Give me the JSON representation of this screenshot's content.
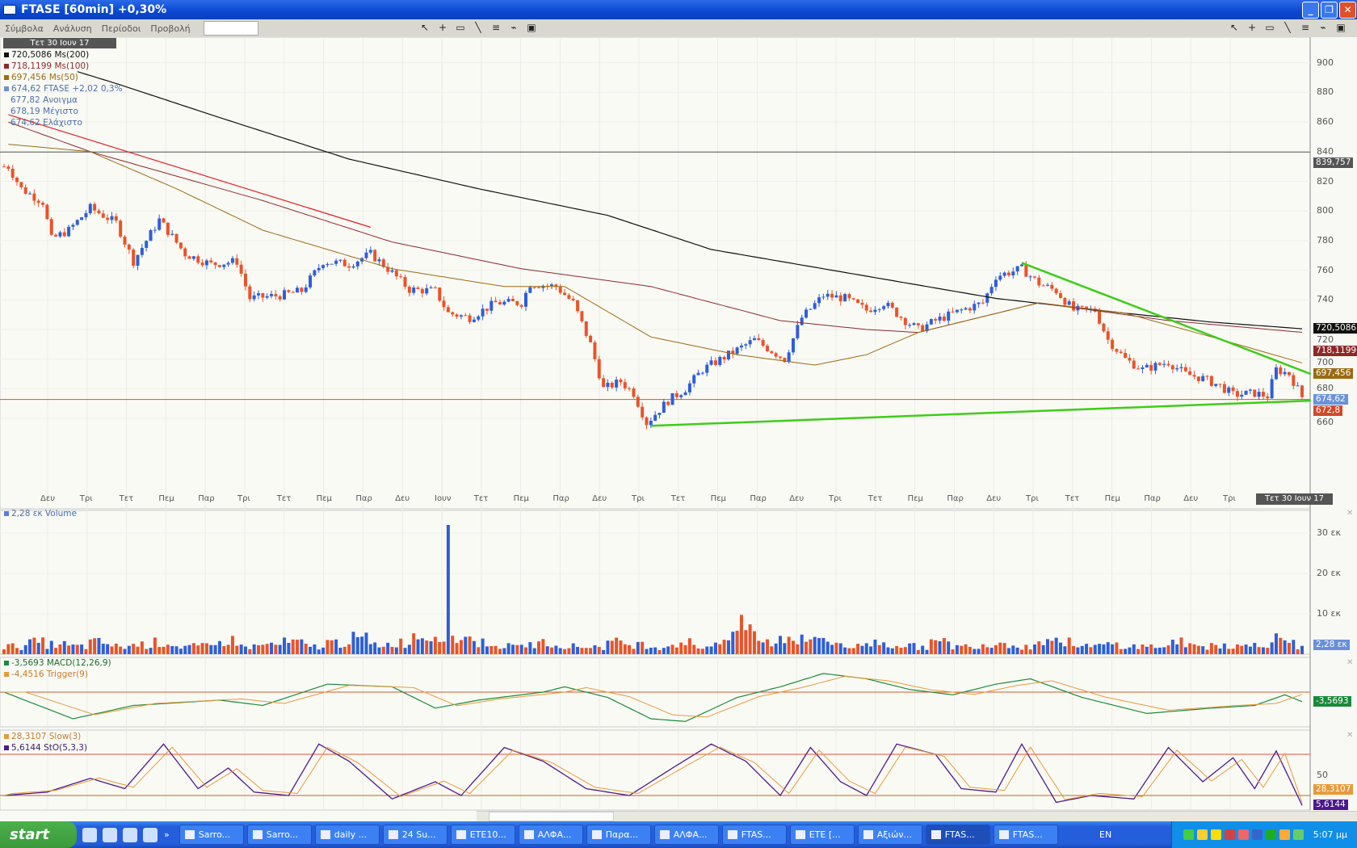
{
  "window": {
    "title": "FTASE [60min] +0,30%"
  },
  "menu": [
    "Σύμβολα",
    "Ανάλυση",
    "Περίοδοι",
    "Προβολή"
  ],
  "symbol_input": {
    "value": ""
  },
  "toolbar_icons": [
    "pointer-icon",
    "crosshair-icon",
    "rectangle-icon",
    "line-icon",
    "horizontal-lines-icon",
    "chart-icon",
    "save-icon"
  ],
  "cursor_date": "Τετ 30 Ιουν 17",
  "legend": {
    "ma200": "720,5086 Ms(200)",
    "ma100": "718,1199 Ms(100)",
    "ma50": "697,456 Ms(50)",
    "price": "674,62 FTASE +2,02 0,3%",
    "open": "677,82 Ανοιγμα",
    "high": "678,19 Μέγιστο",
    "low": "674,62 Ελάχιστο",
    "volume": "2,28 εκ Volume",
    "macd": "-3,5693 MACD(12,26,9)",
    "trigger": "-4,4516 Trigger(9)",
    "slow": "28,3107 Slow(3)",
    "sto": "5,6144 StO(5,3,3)"
  },
  "tags": {
    "hline": "839,757",
    "ma200": "720,5086",
    "ma100": "718,1199",
    "ma50": "697,456",
    "price": "674,62",
    "support": "672,8",
    "volume": "2,28 εκ",
    "macd": "-3,5693",
    "slow": "28,3107",
    "sto": "5,6144"
  },
  "colors": {
    "up": "#2f5fd6",
    "down": "#e8542a",
    "ma200": "#111111",
    "ma100": "#8b2a2a",
    "ma50": "#9a6b12",
    "trend": "#3fcc1a",
    "resist": "#dd2222",
    "macd": "#1a8a3a",
    "trigger": "#e89a3a",
    "sto": "#4b1a8a",
    "slow": "#e89a3a",
    "level": "#d05a2a"
  },
  "chart_data": {
    "type": "candlestick",
    "price_axis": {
      "ticks": [
        660,
        680,
        700,
        720,
        740,
        760,
        780,
        800,
        820,
        840,
        860,
        880,
        900
      ],
      "range": [
        650,
        910
      ]
    },
    "x_tick_labels": [
      "Δευ",
      "Τρι",
      "Τετ",
      "Πεμ",
      "Παρ",
      "Τρι",
      "Τετ",
      "Πεμ",
      "Παρ",
      "Δευ",
      "Ιουν",
      "Τετ",
      "Πεμ",
      "Παρ",
      "Δευ",
      "Τρι",
      "Τετ",
      "Πεμ",
      "Παρ",
      "Δευ",
      "Τρι",
      "Τετ",
      "Πεμ",
      "Παρ",
      "Δευ",
      "Τρι",
      "Τετ",
      "Πεμ",
      "Παρ",
      "Δευ",
      "Τρι"
    ],
    "bars": 301,
    "close_path": [
      [
        1,
        830
      ],
      [
        4,
        815
      ],
      [
        9,
        806
      ],
      [
        11,
        781
      ],
      [
        15,
        787
      ],
      [
        20,
        802
      ],
      [
        26,
        792
      ],
      [
        30,
        766
      ],
      [
        36,
        794
      ],
      [
        42,
        771
      ],
      [
        48,
        764
      ],
      [
        54,
        766
      ],
      [
        57,
        741
      ],
      [
        64,
        743
      ],
      [
        69,
        746
      ],
      [
        74,
        766
      ],
      [
        80,
        764
      ],
      [
        85,
        771
      ],
      [
        89,
        761
      ],
      [
        94,
        747
      ],
      [
        100,
        746
      ],
      [
        103,
        731
      ],
      [
        108,
        728
      ],
      [
        114,
        738
      ],
      [
        120,
        738
      ],
      [
        122,
        751
      ],
      [
        128,
        749
      ],
      [
        132,
        738
      ],
      [
        136,
        710
      ],
      [
        139,
        680
      ],
      [
        143,
        685
      ],
      [
        146,
        677
      ],
      [
        149,
        657
      ],
      [
        154,
        672
      ],
      [
        158,
        680
      ],
      [
        162,
        693
      ],
      [
        168,
        703
      ],
      [
        174,
        713
      ],
      [
        181,
        700
      ],
      [
        185,
        728
      ],
      [
        190,
        743
      ],
      [
        195,
        741
      ],
      [
        200,
        733
      ],
      [
        204,
        738
      ],
      [
        209,
        726
      ],
      [
        212,
        720
      ],
      [
        216,
        726
      ],
      [
        222,
        733
      ],
      [
        227,
        738
      ],
      [
        230,
        756
      ],
      [
        236,
        761
      ],
      [
        240,
        751
      ],
      [
        244,
        746
      ],
      [
        248,
        733
      ],
      [
        253,
        733
      ],
      [
        256,
        713
      ],
      [
        260,
        700
      ],
      [
        264,
        693
      ],
      [
        270,
        698
      ],
      [
        274,
        690
      ],
      [
        278,
        687
      ],
      [
        282,
        682
      ],
      [
        285,
        676
      ],
      [
        290,
        677
      ],
      [
        293,
        675
      ],
      [
        295,
        693
      ],
      [
        298,
        690
      ],
      [
        301,
        674.62
      ]
    ],
    "ma200": [
      [
        17,
        894
      ],
      [
        26,
        886
      ],
      [
        50,
        863
      ],
      [
        80,
        835
      ],
      [
        110,
        815
      ],
      [
        140,
        797
      ],
      [
        164,
        774
      ],
      [
        190,
        761
      ],
      [
        210,
        751
      ],
      [
        230,
        741
      ],
      [
        260,
        731
      ],
      [
        280,
        725
      ],
      [
        301,
        720.5
      ]
    ],
    "ma100": [
      [
        1,
        860
      ],
      [
        20,
        840
      ],
      [
        60,
        807
      ],
      [
        90,
        779
      ],
      [
        120,
        761
      ],
      [
        150,
        749
      ],
      [
        180,
        726
      ],
      [
        200,
        720
      ],
      [
        212,
        718
      ],
      [
        240,
        738
      ],
      [
        270,
        726
      ],
      [
        301,
        718.1
      ]
    ],
    "ma50": [
      [
        1,
        845
      ],
      [
        20,
        840
      ],
      [
        40,
        815
      ],
      [
        60,
        787
      ],
      [
        90,
        761
      ],
      [
        116,
        749
      ],
      [
        130,
        749
      ],
      [
        150,
        715
      ],
      [
        170,
        703
      ],
      [
        188,
        696
      ],
      [
        200,
        703
      ],
      [
        212,
        718
      ],
      [
        226,
        728
      ],
      [
        240,
        738
      ],
      [
        260,
        731
      ],
      [
        280,
        715
      ],
      [
        301,
        697.5
      ]
    ],
    "trendlines": [
      {
        "from": [
          1,
          865
        ],
        "to": [
          85,
          789
        ],
        "color": "resist"
      },
      {
        "from": [
          236,
          765
        ],
        "to": [
          303,
          690
        ],
        "color": "trend"
      },
      {
        "from": [
          150,
          655
        ],
        "to": [
          303,
          672
        ],
        "color": "trend"
      }
    ],
    "hlines": [
      839.757,
      672.8
    ],
    "volume": {
      "unit": "εκ",
      "ticks": [
        10,
        20,
        30
      ],
      "values": [
        2,
        3,
        2.5,
        2,
        3,
        2,
        2.5,
        3,
        2,
        2,
        3.5,
        2,
        2.5,
        3,
        2,
        3,
        4,
        2.5,
        3,
        5,
        32,
        4,
        3,
        2,
        2.5,
        3,
        2,
        2,
        3,
        2.5,
        2,
        3,
        2,
        4,
        7,
        3,
        4,
        5,
        3,
        2,
        3,
        2.5,
        2,
        3,
        2,
        2.5,
        3,
        2,
        4,
        3,
        2,
        2.5,
        2,
        2,
        3,
        2,
        2.5,
        2,
        3,
        4,
        2.28
      ]
    },
    "macd": {
      "zero": 0,
      "values": [
        [
          0,
          0
        ],
        [
          16,
          -10
        ],
        [
          30,
          -5
        ],
        [
          50,
          -3
        ],
        [
          60,
          -5
        ],
        [
          75,
          3
        ],
        [
          90,
          2
        ],
        [
          100,
          -6
        ],
        [
          110,
          -3
        ],
        [
          125,
          0
        ],
        [
          130,
          2
        ],
        [
          140,
          -2
        ],
        [
          150,
          -10
        ],
        [
          158,
          -11
        ],
        [
          170,
          -2
        ],
        [
          180,
          2
        ],
        [
          190,
          7
        ],
        [
          200,
          5
        ],
        [
          210,
          1
        ],
        [
          220,
          -1
        ],
        [
          230,
          3
        ],
        [
          238,
          5
        ],
        [
          250,
          -2
        ],
        [
          265,
          -8
        ],
        [
          280,
          -6
        ],
        [
          290,
          -5
        ],
        [
          297,
          -1
        ],
        [
          301,
          -3.57
        ]
      ]
    },
    "stochastic": {
      "levels": [
        20,
        80
      ],
      "ticks": [
        50
      ],
      "values": [
        [
          0,
          20
        ],
        [
          10,
          25
        ],
        [
          20,
          45
        ],
        [
          28,
          30
        ],
        [
          37,
          95
        ],
        [
          45,
          30
        ],
        [
          52,
          60
        ],
        [
          58,
          25
        ],
        [
          66,
          20
        ],
        [
          73,
          95
        ],
        [
          80,
          70
        ],
        [
          90,
          15
        ],
        [
          100,
          40
        ],
        [
          106,
          20
        ],
        [
          116,
          90
        ],
        [
          125,
          70
        ],
        [
          135,
          30
        ],
        [
          145,
          20
        ],
        [
          155,
          60
        ],
        [
          164,
          95
        ],
        [
          172,
          70
        ],
        [
          180,
          20
        ],
        [
          187,
          90
        ],
        [
          194,
          40
        ],
        [
          200,
          20
        ],
        [
          207,
          95
        ],
        [
          216,
          80
        ],
        [
          222,
          30
        ],
        [
          230,
          25
        ],
        [
          236,
          95
        ],
        [
          244,
          10
        ],
        [
          252,
          20
        ],
        [
          262,
          15
        ],
        [
          270,
          90
        ],
        [
          278,
          40
        ],
        [
          285,
          75
        ],
        [
          290,
          30
        ],
        [
          295,
          85
        ],
        [
          301,
          5.6
        ]
      ]
    }
  },
  "taskbar": {
    "start": "start",
    "tasks": [
      "Sarro...",
      "Sarro...",
      "daily ...",
      "24 Su...",
      "ETE10...",
      "ΑΛΦΑ...",
      "Παρα...",
      "ΑΛΦΑ...",
      "FTAS...",
      "ETE [...",
      "Αξιών...",
      "FTAS...",
      "FTAS..."
    ],
    "active": 11,
    "lang": "EN",
    "clock": "5:07 μμ"
  }
}
